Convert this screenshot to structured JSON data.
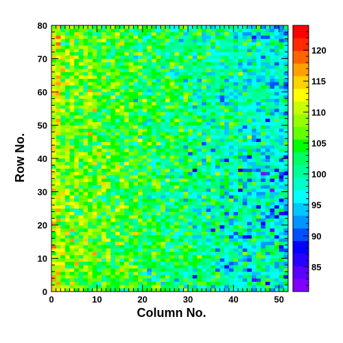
{
  "chart_data": {
    "type": "heatmap",
    "xlabel": "Column No.",
    "ylabel": "Row No.",
    "xlim": [
      0,
      52
    ],
    "ylim": [
      0,
      80
    ],
    "x_ticks": [
      0,
      10,
      20,
      30,
      40,
      50
    ],
    "y_ticks": [
      0,
      10,
      20,
      30,
      40,
      50,
      60,
      70,
      80
    ],
    "n_columns": 52,
    "n_rows": 80,
    "color_scale": {
      "min": 81,
      "max": 124,
      "ticks": [
        85,
        90,
        95,
        100,
        105,
        110,
        115,
        120
      ],
      "palette": [
        "#8000ff",
        "#5a00ff",
        "#2800ff",
        "#0000ff",
        "#0050ff",
        "#0096ff",
        "#00c8ff",
        "#00ffff",
        "#00ffc8",
        "#00ff96",
        "#00ff64",
        "#00ff00",
        "#64ff00",
        "#96ff00",
        "#c8ff00",
        "#ffff00",
        "#ffd200",
        "#ffa000",
        "#ff6400",
        "#ff2800",
        "#ff0000"
      ]
    },
    "trend": {
      "description_values": "mean value per column decreases from about 108 at column 0 to about 97 at column 52; rows near edges slightly higher",
      "left_mean": 108,
      "right_mean": 97,
      "noise": 4
    }
  }
}
